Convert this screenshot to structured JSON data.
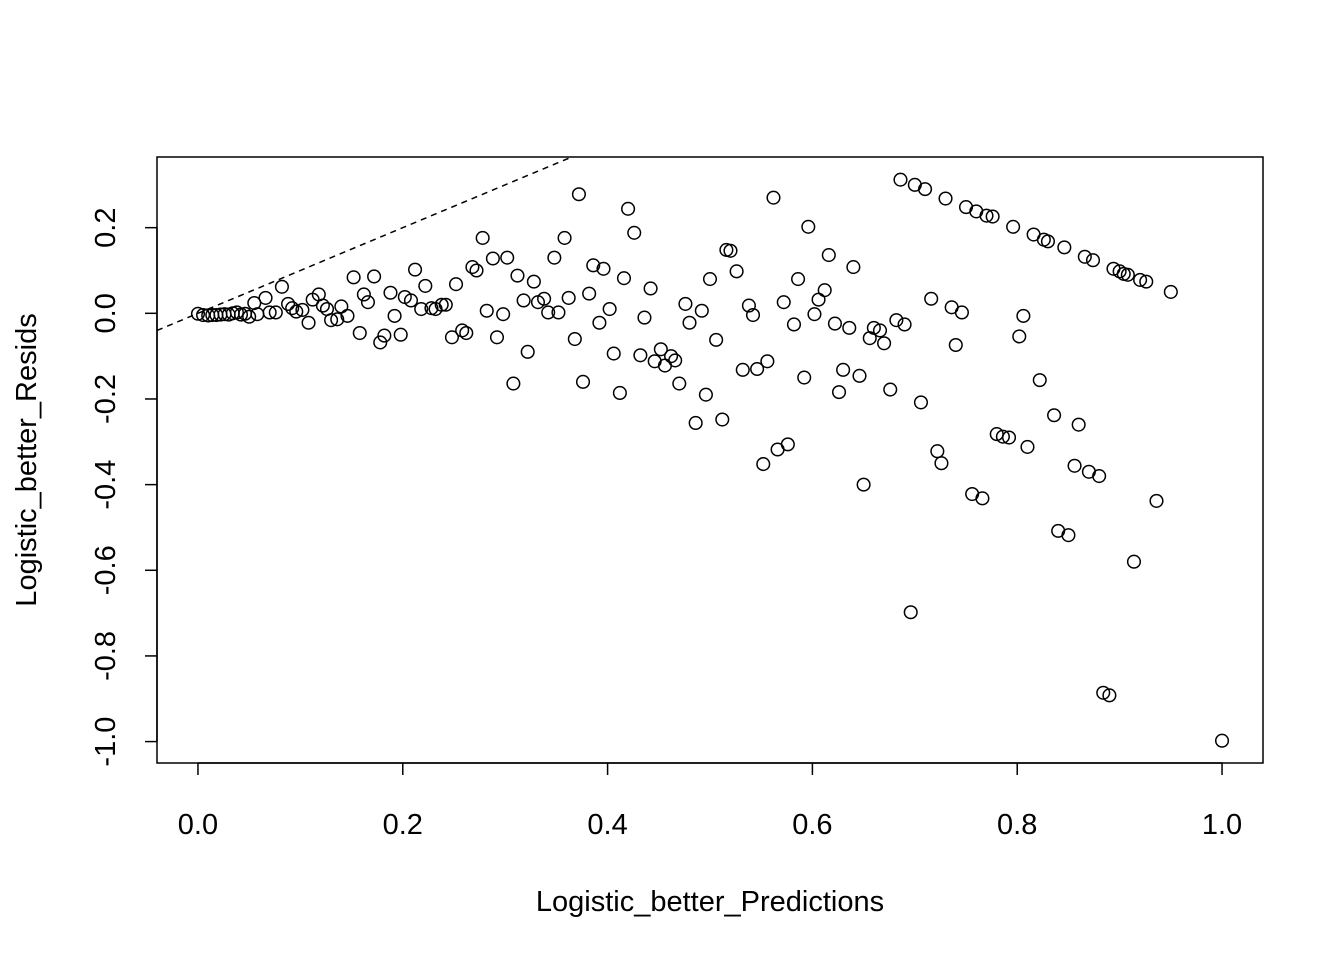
{
  "chart_data": {
    "type": "scatter",
    "title": "",
    "xlabel": "Logistic_better_Predictions",
    "ylabel": "Logistic_better_Resids",
    "xlim": [
      -0.04,
      1.04
    ],
    "ylim": [
      -1.05,
      0.365
    ],
    "grid": false,
    "x_ticks": [
      0.0,
      0.2,
      0.4,
      0.6,
      0.8,
      1.0
    ],
    "x_tick_labels": [
      "0.0",
      "0.2",
      "0.4",
      "0.6",
      "0.8",
      "1.0"
    ],
    "y_ticks": [
      -1.0,
      -0.8,
      -0.6,
      -0.4,
      -0.2,
      0.0,
      0.2
    ],
    "y_tick_labels": [
      "-1.0",
      "-0.8",
      "-0.6",
      "-0.4",
      "-0.2",
      "0.0",
      "0.2"
    ],
    "reference_line": {
      "style": "dashed",
      "slope": 1,
      "intercept": 0
    },
    "points": [
      [
        0.0,
        -0.001
      ],
      [
        0.005,
        -0.004
      ],
      [
        0.01,
        -0.005
      ],
      [
        0.014,
        -0.004
      ],
      [
        0.018,
        -0.004
      ],
      [
        0.022,
        -0.003
      ],
      [
        0.026,
        -0.002
      ],
      [
        0.03,
        -0.003
      ],
      [
        0.034,
        0.0
      ],
      [
        0.038,
        0.002
      ],
      [
        0.042,
        -0.003
      ],
      [
        0.046,
        -0.001
      ],
      [
        0.05,
        -0.008
      ],
      [
        0.055,
        0.024
      ],
      [
        0.058,
        -0.002
      ],
      [
        0.066,
        0.036
      ],
      [
        0.07,
        0.002
      ],
      [
        0.076,
        0.002
      ],
      [
        0.082,
        0.062
      ],
      [
        0.088,
        0.022
      ],
      [
        0.092,
        0.012
      ],
      [
        0.096,
        0.004
      ],
      [
        0.102,
        0.008
      ],
      [
        0.108,
        -0.022
      ],
      [
        0.112,
        0.032
      ],
      [
        0.118,
        0.044
      ],
      [
        0.122,
        0.018
      ],
      [
        0.126,
        0.01
      ],
      [
        0.13,
        -0.016
      ],
      [
        0.136,
        -0.014
      ],
      [
        0.14,
        0.016
      ],
      [
        0.146,
        -0.006
      ],
      [
        0.152,
        0.084
      ],
      [
        0.158,
        -0.046
      ],
      [
        0.162,
        0.044
      ],
      [
        0.166,
        0.026
      ],
      [
        0.172,
        0.086
      ],
      [
        0.178,
        -0.068
      ],
      [
        0.182,
        -0.052
      ],
      [
        0.188,
        0.048
      ],
      [
        0.192,
        -0.006
      ],
      [
        0.198,
        -0.05
      ],
      [
        0.202,
        0.038
      ],
      [
        0.208,
        0.03
      ],
      [
        0.212,
        0.102
      ],
      [
        0.218,
        0.01
      ],
      [
        0.222,
        0.064
      ],
      [
        0.228,
        0.012
      ],
      [
        0.232,
        0.01
      ],
      [
        0.238,
        0.02
      ],
      [
        0.242,
        0.02
      ],
      [
        0.248,
        -0.056
      ],
      [
        0.252,
        0.068
      ],
      [
        0.258,
        -0.04
      ],
      [
        0.262,
        -0.046
      ],
      [
        0.268,
        0.108
      ],
      [
        0.272,
        0.1
      ],
      [
        0.278,
        0.176
      ],
      [
        0.282,
        0.006
      ],
      [
        0.288,
        0.128
      ],
      [
        0.292,
        -0.056
      ],
      [
        0.298,
        -0.002
      ],
      [
        0.302,
        0.13
      ],
      [
        0.308,
        -0.164
      ],
      [
        0.312,
        0.088
      ],
      [
        0.318,
        0.03
      ],
      [
        0.322,
        -0.09
      ],
      [
        0.328,
        0.074
      ],
      [
        0.332,
        0.026
      ],
      [
        0.338,
        0.034
      ],
      [
        0.342,
        0.002
      ],
      [
        0.348,
        0.13
      ],
      [
        0.352,
        0.002
      ],
      [
        0.358,
        0.176
      ],
      [
        0.362,
        0.036
      ],
      [
        0.368,
        -0.06
      ],
      [
        0.372,
        0.278
      ],
      [
        0.376,
        -0.16
      ],
      [
        0.382,
        0.046
      ],
      [
        0.386,
        0.112
      ],
      [
        0.392,
        -0.022
      ],
      [
        0.396,
        0.104
      ],
      [
        0.402,
        0.01
      ],
      [
        0.406,
        -0.094
      ],
      [
        0.412,
        -0.186
      ],
      [
        0.416,
        0.082
      ],
      [
        0.42,
        0.244
      ],
      [
        0.426,
        0.188
      ],
      [
        0.432,
        -0.098
      ],
      [
        0.436,
        -0.01
      ],
      [
        0.442,
        0.058
      ],
      [
        0.446,
        -0.112
      ],
      [
        0.452,
        -0.084
      ],
      [
        0.456,
        -0.122
      ],
      [
        0.462,
        -0.1
      ],
      [
        0.466,
        -0.11
      ],
      [
        0.47,
        -0.164
      ],
      [
        0.476,
        0.022
      ],
      [
        0.48,
        -0.022
      ],
      [
        0.486,
        -0.256
      ],
      [
        0.492,
        0.006
      ],
      [
        0.496,
        -0.19
      ],
      [
        0.5,
        0.08
      ],
      [
        0.506,
        -0.062
      ],
      [
        0.512,
        -0.248
      ],
      [
        0.516,
        0.148
      ],
      [
        0.52,
        0.146
      ],
      [
        0.526,
        0.098
      ],
      [
        0.532,
        -0.132
      ],
      [
        0.538,
        0.018
      ],
      [
        0.542,
        -0.004
      ],
      [
        0.546,
        -0.13
      ],
      [
        0.552,
        -0.352
      ],
      [
        0.556,
        -0.112
      ],
      [
        0.562,
        0.27
      ],
      [
        0.566,
        -0.318
      ],
      [
        0.572,
        0.026
      ],
      [
        0.576,
        -0.306
      ],
      [
        0.582,
        -0.026
      ],
      [
        0.586,
        0.08
      ],
      [
        0.592,
        -0.15
      ],
      [
        0.596,
        0.202
      ],
      [
        0.602,
        -0.002
      ],
      [
        0.606,
        0.032
      ],
      [
        0.612,
        0.054
      ],
      [
        0.616,
        0.136
      ],
      [
        0.622,
        -0.024
      ],
      [
        0.626,
        -0.184
      ],
      [
        0.63,
        -0.132
      ],
      [
        0.636,
        -0.034
      ],
      [
        0.64,
        0.108
      ],
      [
        0.646,
        -0.146
      ],
      [
        0.65,
        -0.4
      ],
      [
        0.656,
        -0.058
      ],
      [
        0.66,
        -0.034
      ],
      [
        0.666,
        -0.04
      ],
      [
        0.67,
        -0.07
      ],
      [
        0.676,
        -0.178
      ],
      [
        0.682,
        -0.016
      ],
      [
        0.686,
        0.312
      ],
      [
        0.69,
        -0.026
      ],
      [
        0.696,
        -0.698
      ],
      [
        0.7,
        0.3
      ],
      [
        0.706,
        -0.208
      ],
      [
        0.71,
        0.29
      ],
      [
        0.716,
        0.034
      ],
      [
        0.722,
        -0.322
      ],
      [
        0.726,
        -0.35
      ],
      [
        0.73,
        0.268
      ],
      [
        0.736,
        0.014
      ],
      [
        0.74,
        -0.074
      ],
      [
        0.746,
        0.002
      ],
      [
        0.75,
        0.248
      ],
      [
        0.756,
        -0.422
      ],
      [
        0.76,
        0.238
      ],
      [
        0.766,
        -0.432
      ],
      [
        0.77,
        0.228
      ],
      [
        0.776,
        0.226
      ],
      [
        0.78,
        -0.282
      ],
      [
        0.786,
        -0.288
      ],
      [
        0.792,
        -0.29
      ],
      [
        0.796,
        0.202
      ],
      [
        0.802,
        -0.054
      ],
      [
        0.806,
        -0.006
      ],
      [
        0.81,
        -0.312
      ],
      [
        0.816,
        0.184
      ],
      [
        0.822,
        -0.156
      ],
      [
        0.826,
        0.172
      ],
      [
        0.83,
        0.168
      ],
      [
        0.836,
        -0.238
      ],
      [
        0.84,
        -0.508
      ],
      [
        0.846,
        0.154
      ],
      [
        0.85,
        -0.518
      ],
      [
        0.856,
        -0.356
      ],
      [
        0.86,
        -0.26
      ],
      [
        0.866,
        0.132
      ],
      [
        0.87,
        -0.37
      ],
      [
        0.874,
        0.124
      ],
      [
        0.88,
        -0.38
      ],
      [
        0.884,
        -0.886
      ],
      [
        0.89,
        -0.892
      ],
      [
        0.894,
        0.104
      ],
      [
        0.9,
        0.098
      ],
      [
        0.904,
        0.092
      ],
      [
        0.908,
        0.09
      ],
      [
        0.914,
        -0.58
      ],
      [
        0.92,
        0.078
      ],
      [
        0.926,
        0.074
      ],
      [
        0.936,
        -0.438
      ],
      [
        0.95,
        0.05
      ],
      [
        1.0,
        -0.998
      ]
    ]
  }
}
